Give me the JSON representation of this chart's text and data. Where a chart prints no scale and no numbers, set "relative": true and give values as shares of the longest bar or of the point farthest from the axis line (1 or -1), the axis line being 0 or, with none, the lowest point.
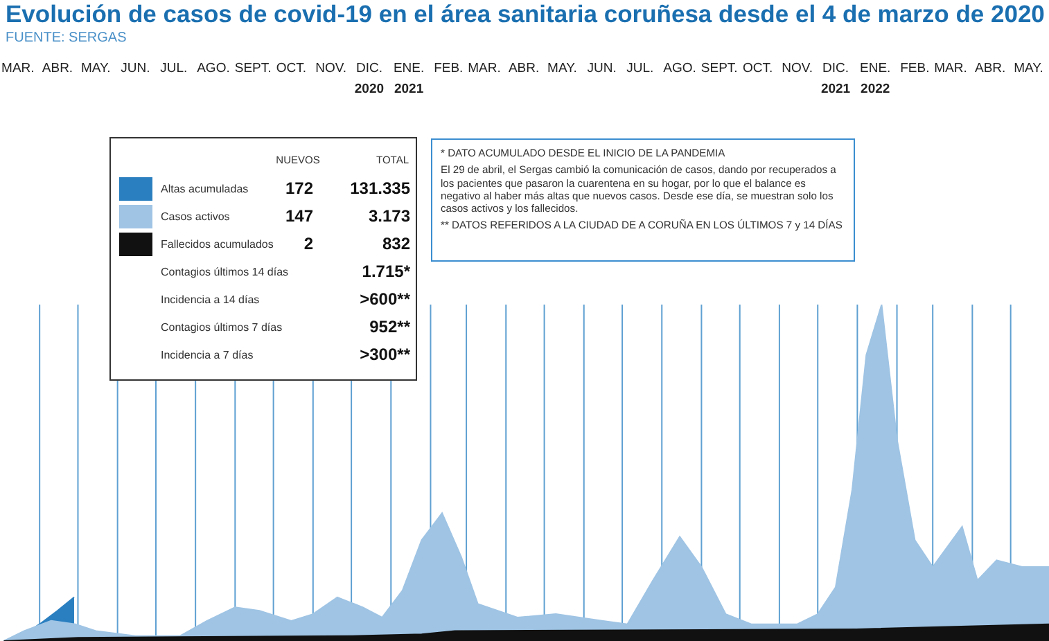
{
  "chart_data": {
    "type": "area",
    "title": "Evolución de casos de covid-19 en el área sanitaria coruñesa desde el 4 de marzo de 2020",
    "subtitle": "FUENTE: SERGAS",
    "relative": true,
    "xlim": [
      "2020-03-01",
      "2022-05-31"
    ],
    "xticks": [
      {
        "value": "2020-03-15",
        "label": "MAR."
      },
      {
        "value": "2020-04-01",
        "label": null
      },
      {
        "value": "2020-04-15",
        "label": "ABR."
      },
      {
        "value": "2020-05-01",
        "label": null
      },
      {
        "value": "2020-05-15",
        "label": "MAY."
      },
      {
        "value": "2020-06-01",
        "label": null
      },
      {
        "value": "2020-06-15",
        "label": "JUN."
      },
      {
        "value": "2020-07-01",
        "label": null
      },
      {
        "value": "2020-07-15",
        "label": "JUL."
      },
      {
        "value": "2020-08-01",
        "label": null
      },
      {
        "value": "2020-08-15",
        "label": "AGO."
      },
      {
        "value": "2020-09-01",
        "label": null
      },
      {
        "value": "2020-09-15",
        "label": "SEPT."
      },
      {
        "value": "2020-10-01",
        "label": null
      },
      {
        "value": "2020-10-15",
        "label": "OCT."
      },
      {
        "value": "2020-11-01",
        "label": null
      },
      {
        "value": "2020-11-15",
        "label": "NOV."
      },
      {
        "value": "2020-12-01",
        "label": null
      },
      {
        "value": "2020-12-15",
        "label": "DIC. 2020"
      },
      {
        "value": "2021-01-01",
        "label": null
      },
      {
        "value": "2021-01-15",
        "label": "ENE. 2021"
      },
      {
        "value": "2021-02-01",
        "label": null
      },
      {
        "value": "2021-02-15",
        "label": "FEB."
      },
      {
        "value": "2021-03-01",
        "label": null
      },
      {
        "value": "2021-03-15",
        "label": "MAR."
      },
      {
        "value": "2021-04-01",
        "label": null
      },
      {
        "value": "2021-04-15",
        "label": "ABR."
      },
      {
        "value": "2021-05-01",
        "label": null
      },
      {
        "value": "2021-05-15",
        "label": "MAY."
      },
      {
        "value": "2021-06-01",
        "label": null
      },
      {
        "value": "2021-06-15",
        "label": "JUN."
      },
      {
        "value": "2021-07-01",
        "label": null
      },
      {
        "value": "2021-07-15",
        "label": "JUL."
      },
      {
        "value": "2021-08-01",
        "label": null
      },
      {
        "value": "2021-08-15",
        "label": "AGO."
      },
      {
        "value": "2021-09-01",
        "label": null
      },
      {
        "value": "2021-09-15",
        "label": "SEPT."
      },
      {
        "value": "2021-10-01",
        "label": null
      },
      {
        "value": "2021-10-15",
        "label": "OCT."
      },
      {
        "value": "2021-11-01",
        "label": null
      },
      {
        "value": "2021-11-15",
        "label": "NOV."
      },
      {
        "value": "2021-12-01",
        "label": null
      },
      {
        "value": "2021-12-15",
        "label": "DIC. 2021"
      },
      {
        "value": "2022-01-01",
        "label": null
      },
      {
        "value": "2022-01-15",
        "label": "ENE. 2022"
      },
      {
        "value": "2022-02-01",
        "label": null
      },
      {
        "value": "2022-02-15",
        "label": "FEB."
      },
      {
        "value": "2022-03-01",
        "label": null
      },
      {
        "value": "2022-03-15",
        "label": "MAR."
      },
      {
        "value": "2022-04-01",
        "label": null
      },
      {
        "value": "2022-04-15",
        "label": "ABR."
      },
      {
        "value": "2022-05-01",
        "label": null
      },
      {
        "value": "2022-05-15",
        "label": "MAY."
      }
    ],
    "grid": "x",
    "legend": "top left",
    "series": [
      {
        "name": "Altas acumuladas",
        "color": "#2a7fc0",
        "x": [
          "2020-03-04",
          "2020-03-20",
          "2020-04-01",
          "2020-04-15",
          "2020-04-28"
        ],
        "values": [
          0,
          0.02,
          0.05,
          0.09,
          0.13
        ]
      },
      {
        "name": "Casos activos",
        "color": "#9fc4e4",
        "x": [
          "2020-03-04",
          "2020-03-20",
          "2020-04-10",
          "2020-04-29",
          "2020-05-15",
          "2020-06-15",
          "2020-07-20",
          "2020-08-10",
          "2020-09-01",
          "2020-09-20",
          "2020-10-15",
          "2020-11-01",
          "2020-11-20",
          "2020-12-10",
          "2020-12-25",
          "2021-01-10",
          "2021-01-25",
          "2021-02-10",
          "2021-02-25",
          "2021-03-10",
          "2021-04-10",
          "2021-05-10",
          "2021-06-15",
          "2021-07-05",
          "2021-07-25",
          "2021-08-15",
          "2021-09-01",
          "2021-09-20",
          "2021-10-10",
          "2021-11-15",
          "2021-12-01",
          "2021-12-15",
          "2021-12-28",
          "2022-01-08",
          "2022-01-20",
          "2022-02-01",
          "2022-02-15",
          "2022-03-01",
          "2022-03-24",
          "2022-04-05",
          "2022-04-20",
          "2022-05-10",
          "2022-05-31"
        ],
        "values": [
          0,
          0.03,
          0.06,
          0.05,
          0.03,
          0.015,
          0.015,
          0.06,
          0.1,
          0.09,
          0.06,
          0.08,
          0.13,
          0.1,
          0.07,
          0.15,
          0.3,
          0.38,
          0.25,
          0.11,
          0.07,
          0.08,
          0.06,
          0.05,
          0.18,
          0.31,
          0.22,
          0.08,
          0.05,
          0.05,
          0.08,
          0.16,
          0.45,
          0.85,
          1,
          0.6,
          0.3,
          0.22,
          0.34,
          0.18,
          0.24,
          0.22,
          0.22
        ]
      },
      {
        "name": "Fallecidos acumulados",
        "color": "#111111",
        "x": [
          "2020-03-04",
          "2020-05-01",
          "2020-12-01",
          "2021-01-25",
          "2021-02-20",
          "2021-12-31",
          "2022-05-31"
        ],
        "values": [
          0,
          0.01,
          0.015,
          0.02,
          0.03,
          0.035,
          0.05
        ]
      }
    ],
    "annotations": [
      "NUEVOS",
      "TOTAL",
      "172",
      "131.335",
      "147",
      "3.173",
      "2",
      "832",
      "Contagios últimos 14 días",
      "1.715*",
      "Incidencia a 14 días",
      ">600**",
      "Contagios últimos 7 días",
      "952**",
      "Incidencia a 7 días",
      ">300**",
      "* DATO ACUMULADO DESDE EL INICIO DE LA PANDEMIA",
      "El 29 de abril, el Sergas cambió la comunicación de casos, dando por recuperados a los pacientes que pasaron la cuarentena en su hogar, por lo que el balance es negativo al haber más altas que nuevos casos. Desde ese día, se muestran solo los casos activos y los fallecidos.",
      "** DATOS REFERIDOS A LA CIUDAD DE A CORUÑA EN LOS ÚLTIMOS 7 y 14 DÍAS"
    ]
  }
}
